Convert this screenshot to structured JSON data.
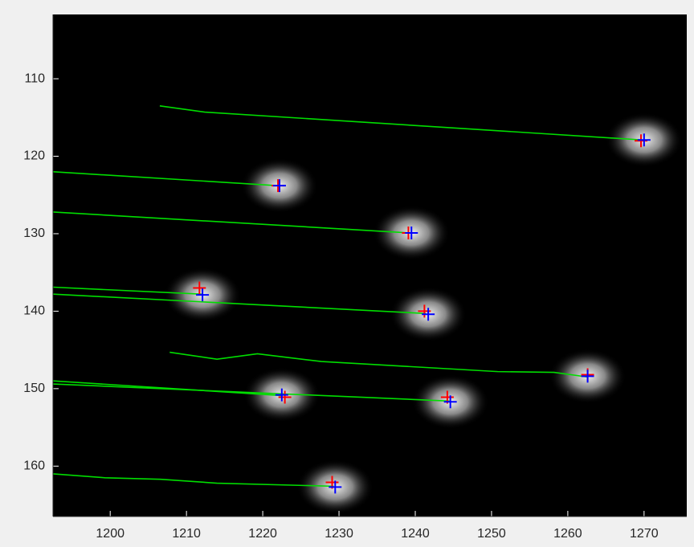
{
  "chart_data": {
    "type": "line",
    "xlim": [
      1192.5,
      1275.6
    ],
    "ylim": [
      101.7,
      166.5
    ],
    "ydir": "reverse",
    "xticks": [
      1200,
      1210,
      1220,
      1230,
      1240,
      1250,
      1260,
      1270
    ],
    "yticks": [
      110,
      120,
      130,
      140,
      150,
      160
    ],
    "grid": false,
    "background": "#000000",
    "series": [
      {
        "color": "#00dd00",
        "x": [
          1206.5,
          1212.4,
          1269.8
        ],
        "y": [
          113.5,
          114.3,
          117.9
        ]
      },
      {
        "color": "#00dd00",
        "x": [
          1192.5,
          1222.0
        ],
        "y": [
          122.0,
          123.8
        ]
      },
      {
        "color": "#00dd00",
        "x": [
          1192.5,
          1239.3
        ],
        "y": [
          127.2,
          129.9
        ]
      },
      {
        "color": "#00dd00",
        "x": [
          1192.5,
          1212.0
        ],
        "y": [
          136.9,
          137.8
        ]
      },
      {
        "color": "#00dd00",
        "x": [
          1192.5,
          1241.4
        ],
        "y": [
          137.8,
          140.3
        ]
      },
      {
        "color": "#00dd00",
        "x": [
          1207.8,
          1214.0,
          1219.3,
          1227.7,
          1250.8,
          1258.2,
          1262.6
        ],
        "y": [
          145.3,
          146.2,
          145.5,
          146.5,
          147.8,
          147.9,
          148.5
        ]
      },
      {
        "color": "#00dd00",
        "x": [
          1192.5,
          1222.6
        ],
        "y": [
          149.0,
          150.9
        ]
      },
      {
        "color": "#00dd00",
        "x": [
          1192.5,
          1244.5
        ],
        "y": [
          149.4,
          151.6
        ]
      },
      {
        "color": "#00dd00",
        "x": [
          1192.5,
          1199.3,
          1206.6,
          1214.0,
          1229.3
        ],
        "y": [
          161.0,
          161.5,
          161.7,
          162.2,
          162.6
        ]
      }
    ],
    "markers": [
      {
        "color": "#ff0000",
        "x": [
          1269.6,
          1222.0,
          1239.1,
          1211.7,
          1241.2,
          1262.6,
          1222.9,
          1244.2,
          1229.1
        ],
        "y": [
          118.0,
          123.8,
          129.9,
          137.0,
          140.0,
          148.2,
          151.1,
          151.1,
          162.1
        ]
      },
      {
        "color": "#0000ff",
        "x": [
          1270.0,
          1222.2,
          1239.5,
          1212.1,
          1241.7,
          1262.6,
          1222.5,
          1244.6,
          1229.5
        ],
        "y": [
          117.9,
          123.8,
          129.9,
          137.9,
          140.4,
          148.4,
          150.8,
          151.7,
          162.7
        ]
      }
    ]
  }
}
